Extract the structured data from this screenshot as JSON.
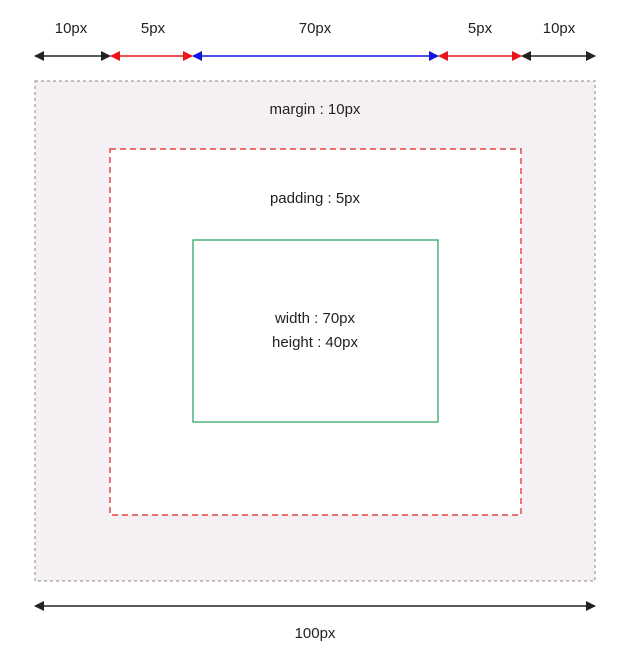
{
  "colors": {
    "margin": "#222222",
    "padding": "#e8141c",
    "content": "#1414e0",
    "margin_fill": "#f4f0f3",
    "padding_border": "#e02020",
    "content_border": "#22a05a",
    "outer_border": "#888888"
  },
  "top_labels": [
    "10px",
    "5px",
    "70px",
    "5px",
    "10px"
  ],
  "margin_label": "margin : 10px",
  "padding_label": "padding : 5px",
  "content_width_label": "width : 70px",
  "content_height_label": "height : 40px",
  "total_width_label": "100px"
}
